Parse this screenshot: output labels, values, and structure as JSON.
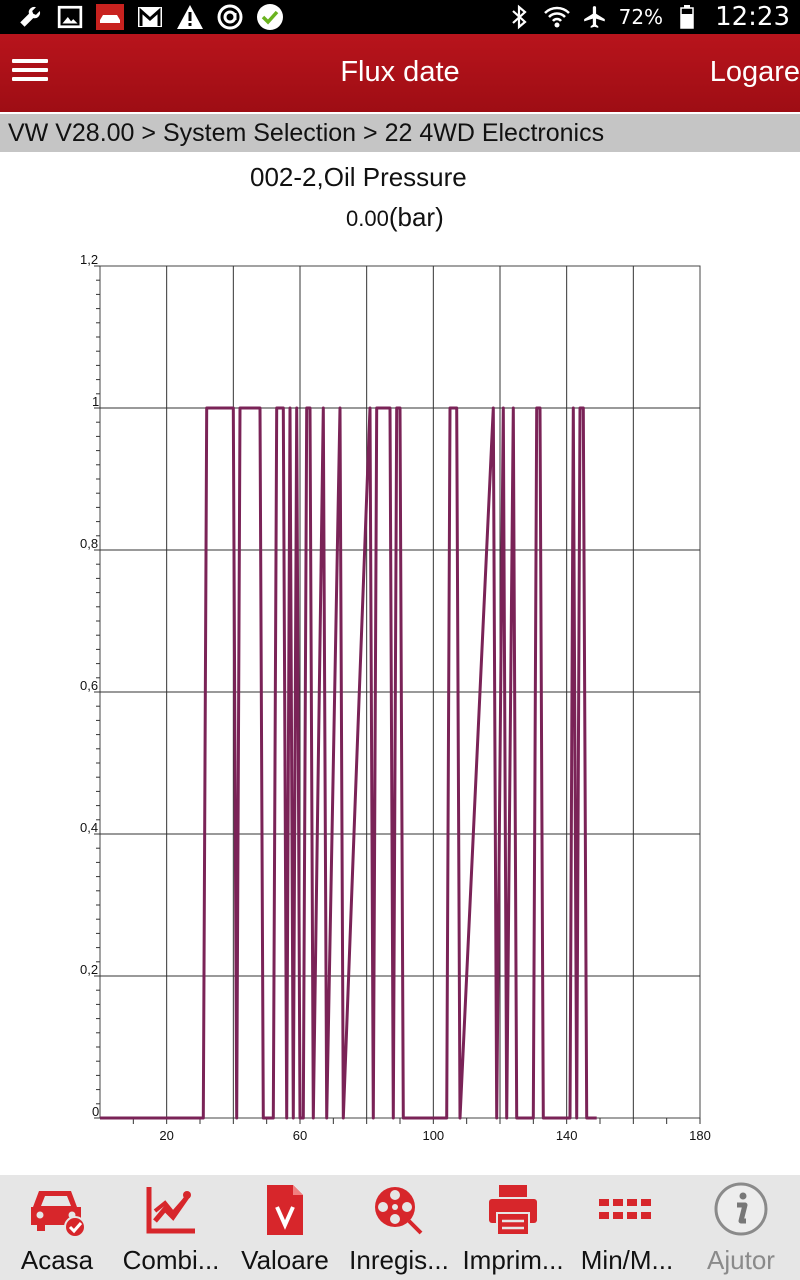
{
  "status_bar": {
    "left_icons": [
      "wrench-icon",
      "image-icon",
      "car-notification-icon",
      "gmail-icon",
      "warning-icon",
      "at-sign-icon",
      "check-circle-icon"
    ],
    "battery_text": "72%",
    "time": "12:23"
  },
  "app_bar": {
    "title": "Flux date",
    "log_label": "Logare"
  },
  "breadcrumb": "VW V28.00 > System Selection > 22 4WD Electronics",
  "chart": {
    "title": "002-2,Oil Pressure",
    "value": "0.00",
    "unit": "(bar)"
  },
  "chart_data": {
    "type": "line",
    "title": "002-2,Oil Pressure",
    "xlabel": "",
    "ylabel": "",
    "xlim": [
      0,
      180
    ],
    "ylim": [
      0,
      1.2
    ],
    "x_ticks": [
      20,
      60,
      100,
      140,
      180
    ],
    "y_ticks": [
      "0",
      "0,2",
      "0,4",
      "0,6",
      "0,8",
      "1",
      "1,2"
    ],
    "grid": true,
    "color": "#7a2357",
    "series": [
      {
        "x": [
          0,
          31,
          32,
          40,
          41,
          42,
          48,
          49,
          52,
          53,
          55,
          56,
          57,
          58,
          59,
          60,
          61,
          62,
          63,
          64,
          67,
          68,
          72,
          73,
          81,
          82,
          83,
          87,
          88,
          89,
          90,
          91,
          104,
          105,
          107,
          108,
          118,
          119,
          121,
          122,
          124,
          125,
          130,
          131,
          132,
          133,
          141,
          142,
          143,
          144,
          145,
          146,
          149
        ],
        "y": [
          0,
          0,
          1,
          1,
          0,
          1,
          1,
          0,
          0,
          1,
          1,
          0,
          1,
          0,
          1,
          0,
          0,
          1,
          1,
          0,
          1,
          0,
          1,
          0,
          1,
          0,
          1,
          1,
          0,
          1,
          1,
          0,
          0,
          1,
          1,
          0,
          1,
          0,
          1,
          0,
          1,
          0,
          0,
          1,
          1,
          0,
          0,
          1,
          0,
          1,
          1,
          0,
          0
        ]
      }
    ]
  },
  "toolbar": {
    "items": [
      {
        "label": "Acasa",
        "icon": "car-home-icon"
      },
      {
        "label": "Combi...",
        "icon": "combined-chart-icon"
      },
      {
        "label": "Valoare",
        "icon": "value-document-icon"
      },
      {
        "label": "Inregis...",
        "icon": "film-reel-record-icon"
      },
      {
        "label": "Imprim...",
        "icon": "printer-icon"
      },
      {
        "label": "Min/M...",
        "icon": "min-max-grid-icon"
      },
      {
        "label": "Ajutor",
        "icon": "info-help-icon"
      }
    ]
  },
  "colors": {
    "brand_red": "#b8141c",
    "toolbar_icon_red": "#d7262b",
    "plot_line": "#7a2357"
  }
}
